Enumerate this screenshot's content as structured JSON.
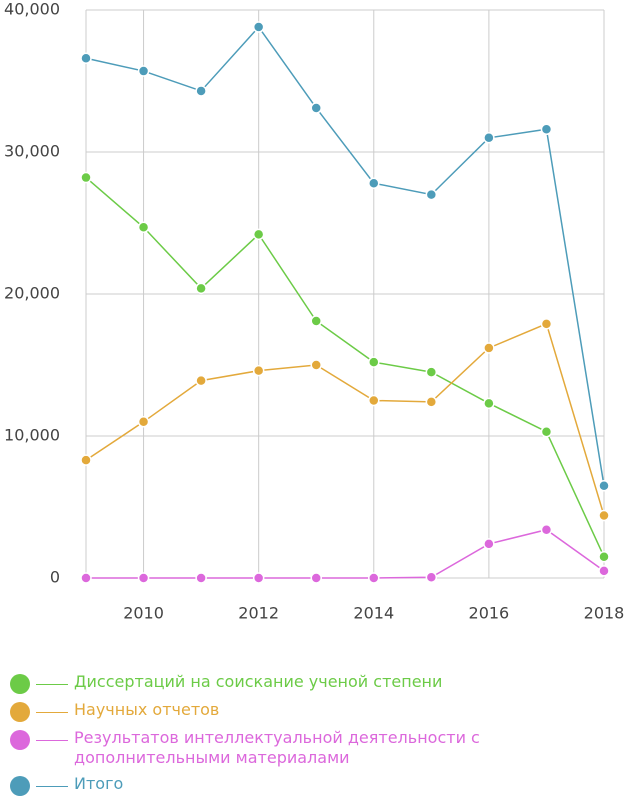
{
  "chart_data": {
    "type": "line",
    "x": [
      2009,
      2010,
      2011,
      2012,
      2013,
      2014,
      2015,
      2016,
      2017,
      2018
    ],
    "xlim": [
      2009,
      2018
    ],
    "xticks": [
      2010,
      2012,
      2014,
      2016,
      2018
    ],
    "ylim": [
      0,
      40000
    ],
    "yticks": [
      0,
      {
        "value": 10000,
        "label": "10,000"
      },
      {
        "value": 20000,
        "label": "20,000"
      },
      {
        "value": 30000,
        "label": "30,000"
      },
      {
        "value": 40000,
        "label": "40,000"
      }
    ],
    "grid": true,
    "series": [
      {
        "name": "Диссертаций на соискание ученой степени",
        "color": "#6ccb47",
        "values": [
          28200,
          24700,
          20400,
          24200,
          18100,
          15200,
          14500,
          12300,
          10300,
          1500
        ]
      },
      {
        "name": "Научных отчетов",
        "color": "#e3a93b",
        "values": [
          8300,
          11000,
          13900,
          14600,
          15000,
          12500,
          12400,
          16200,
          17900,
          4400
        ]
      },
      {
        "name": "Результатов интеллектуальной деятельности с дополнительными материалами",
        "color": "#dc68dc",
        "values": [
          0,
          0,
          0,
          0,
          0,
          0,
          50,
          2400,
          3400,
          500
        ]
      },
      {
        "name": "Итого",
        "color": "#4d9cb9",
        "values": [
          36600,
          35700,
          34300,
          38800,
          33100,
          27800,
          27000,
          31000,
          31600,
          6500
        ]
      }
    ]
  }
}
